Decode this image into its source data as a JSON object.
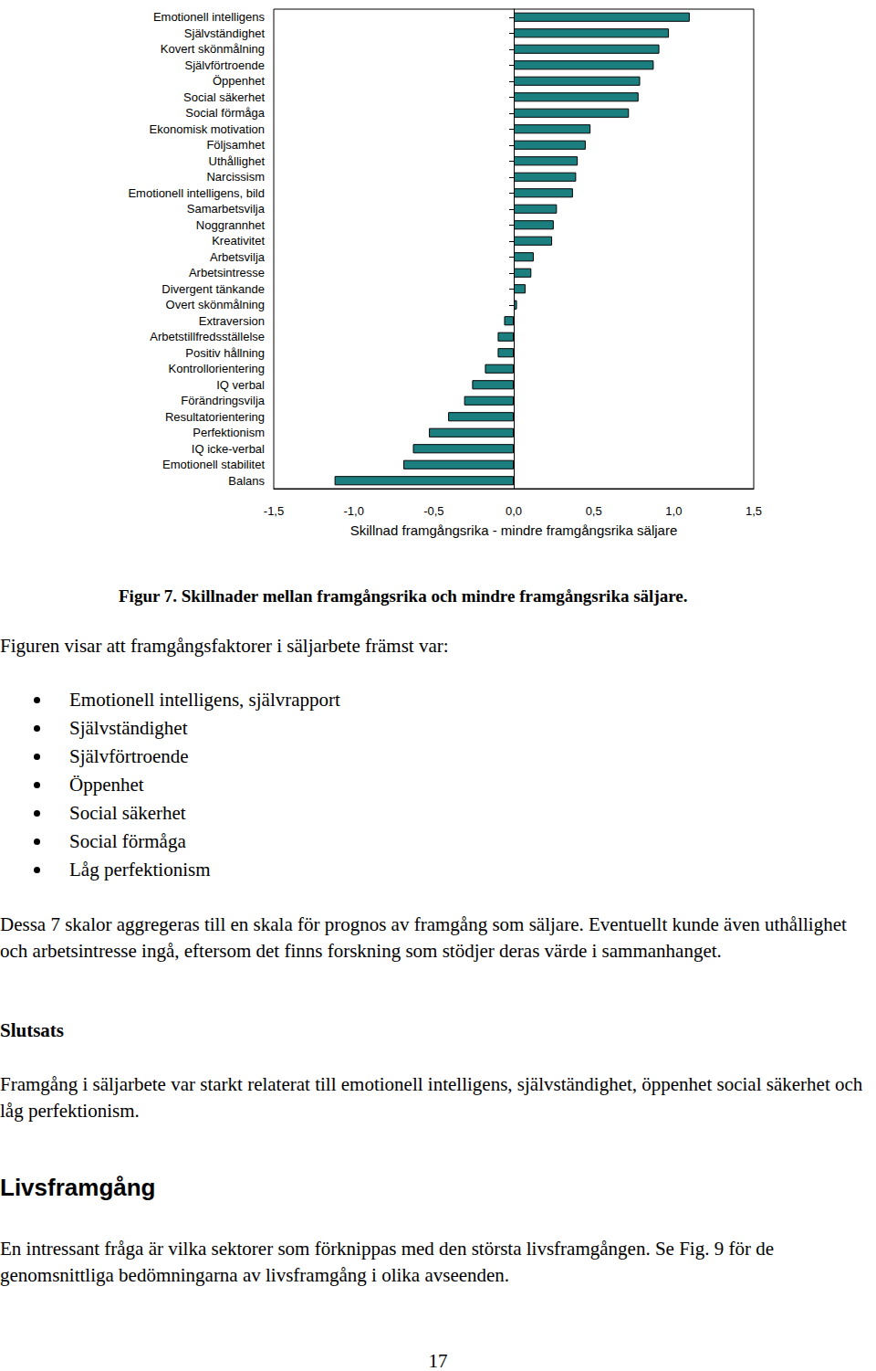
{
  "chart_data": {
    "type": "bar",
    "orientation": "horizontal",
    "grid": false,
    "color": "#1b7f7f",
    "xlabel": "Skillnad framgångsrika - mindre framgångsrika säljare",
    "xlim": [
      -1.5,
      1.5
    ],
    "xticks": [
      {
        "value": -1.5,
        "label": "-1,5"
      },
      {
        "value": -1.0,
        "label": "-1,0"
      },
      {
        "value": -0.5,
        "label": "-0,5"
      },
      {
        "value": 0,
        "label": "0,0"
      },
      {
        "value": 0.5,
        "label": "0,5"
      },
      {
        "value": 1.0,
        "label": "1,0"
      },
      {
        "value": 1.5,
        "label": "1,5"
      }
    ],
    "categories": [
      "Emotionell intelligens",
      "Självständighet",
      "Kovert skönmålning",
      "Självförtroende",
      "Öppenhet",
      "Social säkerhet",
      "Social förmåga",
      "Ekonomisk motivation",
      "Följsamhet",
      "Uthållighet",
      "Narcissism",
      "Emotionell intelligens, bild",
      "Samarbetsvilja",
      "Noggrannhet",
      "Kreativitet",
      "Arbetsvilja",
      "Arbetsintresse",
      "Divergent tänkande",
      "Overt skönmålning",
      "Extraversion",
      "Arbetstillfredsställelse",
      "Positiv hållning",
      "Kontrollorientering",
      "IQ verbal",
      "Förändringsvilja",
      "Resultatorientering",
      "Perfektionism",
      "IQ icke-verbal",
      "Emotionell stabilitet",
      "Balans"
    ],
    "values": [
      1.1,
      0.97,
      0.91,
      0.875,
      0.79,
      0.78,
      0.72,
      0.48,
      0.45,
      0.4,
      0.39,
      0.37,
      0.27,
      0.25,
      0.24,
      0.125,
      0.11,
      0.074,
      0.02,
      -0.06,
      -0.1,
      -0.1,
      -0.18,
      -0.26,
      -0.31,
      -0.41,
      -0.53,
      -0.63,
      -0.69,
      -1.12
    ]
  },
  "caption": "Figur 7. Skillnader mellan framgångsrika och mindre framgångsrika säljare.",
  "intro": "Figuren visar att framgångsfaktorer i säljarbete främst var:",
  "bullets": [
    "Emotionell intelligens, självrapport",
    "Självständighet",
    "Självförtroende",
    "Öppenhet",
    "Social säkerhet",
    "Social förmåga",
    "Låg perfektionism"
  ],
  "paragraph": "Dessa 7 skalor aggregeras till en skala för prognos av framgång som säljare. Eventuellt kunde även uthållighet och arbetsintresse  ingå, eftersom det finns forskning som stödjer deras värde i sammanhanget.",
  "heading_slutsats": "Slutsats",
  "slutsats": "Framgång i säljarbete var starkt relaterat till emotionell intelligens, självständighet, öppenhet social säkerhet och låg perfektionism.",
  "heading_livsframgang": "Livsframgång",
  "livsframgang": "En intressant fråga är vilka sektorer som förknippas med den största livsframgången. Se Fig. 9 för de genomsnittliga bedömningarna av livsframgång i olika avseenden.",
  "page_number": 17
}
